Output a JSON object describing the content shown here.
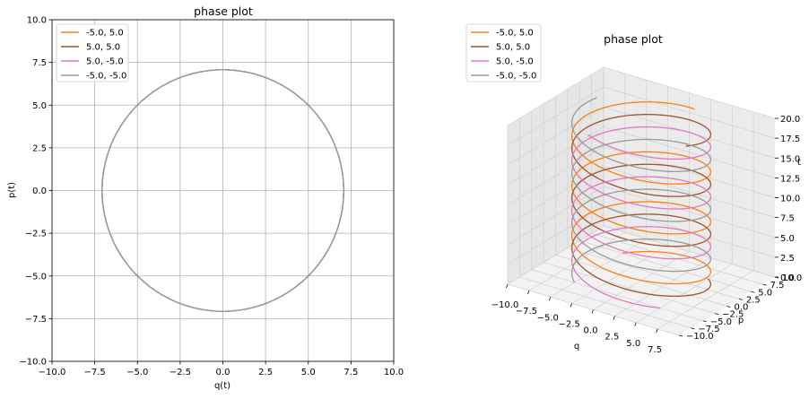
{
  "chart_data": [
    {
      "type": "line",
      "title": "phase plot",
      "xlabel": "q(t)",
      "ylabel": "p(t)",
      "xlim": [
        -10,
        10
      ],
      "ylim": [
        -10,
        10
      ],
      "xticks": [
        "−10.0",
        "−7.5",
        "−5.0",
        "−2.5",
        "0.0",
        "2.5",
        "5.0",
        "7.5",
        "10.0"
      ],
      "yticks": [
        "−10.0",
        "−7.5",
        "−5.0",
        "−2.5",
        "0.0",
        "2.5",
        "5.0",
        "7.5",
        "10.0"
      ],
      "grid": true,
      "legend_position": "top-left",
      "circle_radius": 7.07,
      "series": [
        {
          "name": "-5.0, 5.0",
          "color": "#ff7f0e",
          "q0": -5.0,
          "p0": 5.0
        },
        {
          "name": "5.0, 5.0",
          "color": "#a0522d",
          "q0": 5.0,
          "p0": 5.0
        },
        {
          "name": "5.0, -5.0",
          "color": "#e377c2",
          "q0": 5.0,
          "p0": -5.0
        },
        {
          "name": "-5.0, -5.0",
          "color": "#999999",
          "q0": -5.0,
          "p0": -5.0
        }
      ]
    },
    {
      "type": "line",
      "projection": "3d",
      "title": "phase plot",
      "xlabel": "q",
      "ylabel": "p",
      "zlabel": "t",
      "xlim": [
        -10,
        10
      ],
      "ylim": [
        -10,
        10
      ],
      "zlim": [
        0,
        20
      ],
      "xticks": [
        "−10.0",
        "−7.5",
        "−5.0",
        "−2.5",
        "0.0",
        "2.5",
        "5.0",
        "7.5"
      ],
      "yticks": [
        "10.0",
        "7.5",
        "5.0",
        "2.5",
        "0.0",
        "−2.5",
        "−5.0",
        "−7.5",
        "−10.0"
      ],
      "zticks": [
        "0.0",
        "2.5",
        "5.0",
        "7.5",
        "10.0",
        "12.5",
        "15.0",
        "17.5",
        "20.0"
      ],
      "grid": true,
      "legend_position": "top-left",
      "t_range": [
        0,
        20
      ],
      "series": [
        {
          "name": "-5.0, 5.0",
          "color": "#ff7f0e",
          "q0": -5.0,
          "p0": 5.0
        },
        {
          "name": "5.0, 5.0",
          "color": "#a0522d",
          "q0": 5.0,
          "p0": 5.0
        },
        {
          "name": "5.0, -5.0",
          "color": "#e377c2",
          "q0": 5.0,
          "p0": -5.0
        },
        {
          "name": "-5.0, -5.0",
          "color": "#999999",
          "q0": -5.0,
          "p0": -5.0
        }
      ]
    }
  ]
}
